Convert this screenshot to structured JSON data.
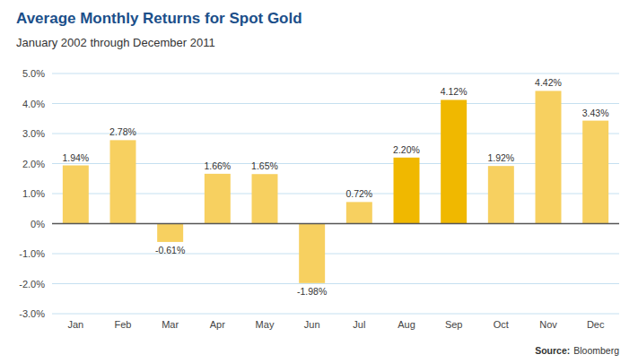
{
  "chart_data": {
    "type": "bar",
    "title": "Average Monthly Returns for Spot Gold",
    "subtitle": "January 2002 through December 2011",
    "annotations": [
      "Source:",
      "Bloomberg"
    ],
    "categories": [
      "Jan",
      "Feb",
      "Mar",
      "Apr",
      "May",
      "Jun",
      "Jul",
      "Aug",
      "Sep",
      "Oct",
      "Nov",
      "Dec"
    ],
    "values": [
      1.94,
      2.78,
      -0.61,
      1.66,
      1.65,
      -1.98,
      0.72,
      2.2,
      4.12,
      1.92,
      4.42,
      3.43
    ],
    "value_labels": [
      "1.94%",
      "2.78%",
      "-0.61%",
      "1.66%",
      "1.65%",
      "-1.98%",
      "0.72%",
      "2.20%",
      "4.12%",
      "1.92%",
      "4.42%",
      "3.43%"
    ],
    "colors": [
      "#F7D060",
      "#F7D060",
      "#F7D060",
      "#F7D060",
      "#F7D060",
      "#F7D060",
      "#F7D060",
      "#F0B800",
      "#F0B800",
      "#F7D060",
      "#F7D060",
      "#F7D060"
    ],
    "ylim": [
      -3.0,
      5.0
    ],
    "yticks": [
      {
        "value": -3.0,
        "label": "-3.0%"
      },
      {
        "value": -2.0,
        "label": "-2.0%"
      },
      {
        "value": -1.0,
        "label": "-1.0%"
      },
      {
        "value": 0.0,
        "label": "0%"
      },
      {
        "value": 1.0,
        "label": "1.0%"
      },
      {
        "value": 2.0,
        "label": "2.0%"
      },
      {
        "value": 3.0,
        "label": "3.0%"
      },
      {
        "value": 4.0,
        "label": "4.0%"
      },
      {
        "value": 5.0,
        "label": "5.0%"
      }
    ],
    "grid": true,
    "data_labels": true
  }
}
